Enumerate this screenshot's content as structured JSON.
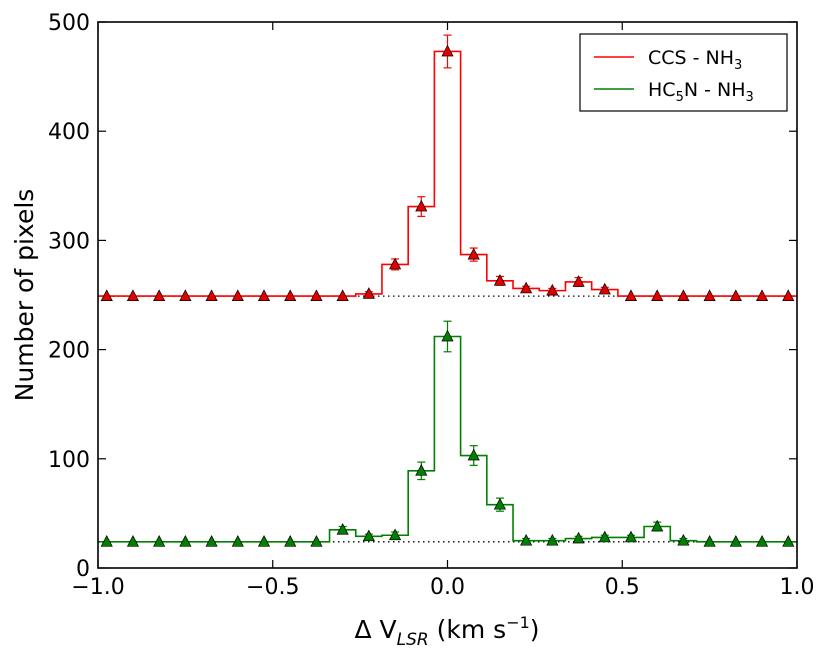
{
  "chart_data": {
    "type": "line",
    "xlabel": "Δ V",
    "xlabel_sub": "LSR",
    "xlabel_unit_pre": " (km s",
    "xlabel_unit_sup": "−1",
    "xlabel_unit_post": ")",
    "ylabel": "Number of pixels",
    "xlim": [
      -1.0,
      1.0
    ],
    "ylim": [
      0,
      500
    ],
    "xticks": [
      -1.0,
      -0.5,
      0.0,
      0.5,
      1.0
    ],
    "xtick_labels": [
      "−1.0",
      "−0.5",
      "0.0",
      "0.5",
      "1.0"
    ],
    "yticks": [
      0,
      100,
      200,
      300,
      400,
      500
    ],
    "ytick_labels": [
      "0",
      "100",
      "200",
      "300",
      "400",
      "500"
    ],
    "legend_position": "top-right",
    "series": [
      {
        "name": "CCS - NH3",
        "legend_main": "CCS - NH",
        "legend_sub": "3",
        "color": "#ff0000",
        "marker_color": "#e00000",
        "baseline": 249,
        "x": [
          -0.975,
          -0.9,
          -0.825,
          -0.75,
          -0.675,
          -0.6,
          -0.525,
          -0.45,
          -0.375,
          -0.3,
          -0.225,
          -0.15,
          -0.075,
          0.0,
          0.075,
          0.15,
          0.225,
          0.3,
          0.375,
          0.45,
          0.525,
          0.6,
          0.675,
          0.75,
          0.825,
          0.9,
          0.975
        ],
        "y": [
          249,
          249,
          249,
          249,
          249,
          249,
          249,
          249,
          249,
          249,
          251,
          278,
          331,
          473,
          287,
          263,
          256,
          254,
          262,
          255,
          249,
          249,
          249,
          249,
          249,
          249,
          249
        ],
        "yerr": [
          0,
          0,
          0,
          0,
          0,
          0,
          0,
          0,
          0,
          0,
          2,
          5,
          9,
          15,
          6,
          4,
          2,
          2,
          4,
          2,
          0,
          0,
          0,
          0,
          0,
          0,
          0
        ]
      },
      {
        "name": "HC5N - NH3",
        "legend_main": "HC",
        "legend_sub": "5",
        "legend_main2": "N - NH",
        "legend_sub2": "3",
        "color": "#008000",
        "marker_color": "#008000",
        "baseline": 24,
        "x": [
          -0.975,
          -0.9,
          -0.825,
          -0.75,
          -0.675,
          -0.6,
          -0.525,
          -0.45,
          -0.375,
          -0.3,
          -0.225,
          -0.15,
          -0.075,
          0.0,
          0.075,
          0.15,
          0.225,
          0.3,
          0.375,
          0.45,
          0.525,
          0.6,
          0.675,
          0.75,
          0.825,
          0.9,
          0.975
        ],
        "y": [
          24,
          24,
          24,
          24,
          24,
          24,
          24,
          24,
          24,
          35,
          29,
          30,
          89,
          212,
          103,
          58,
          25,
          25,
          27,
          28,
          28,
          38,
          25,
          24,
          24,
          24,
          24
        ],
        "yerr": [
          0,
          0,
          0,
          0,
          0,
          0,
          0,
          0,
          0,
          3,
          2,
          3,
          8,
          14,
          9,
          6,
          2,
          2,
          2,
          2,
          2,
          4,
          2,
          0,
          0,
          0,
          0
        ]
      }
    ]
  }
}
